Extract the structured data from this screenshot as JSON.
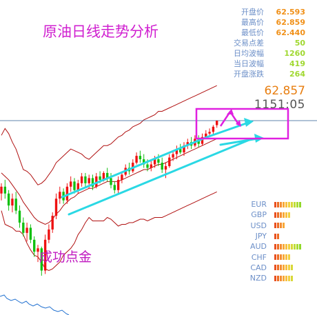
{
  "header": {
    "title": "原油日线走势分析"
  },
  "watermark": "成功点金",
  "stats": [
    {
      "label": "开盘价",
      "value": "62.593",
      "color": "#f09018"
    },
    {
      "label": "最高价",
      "value": "62.859",
      "color": "#f09018"
    },
    {
      "label": "最低价",
      "value": "62.440",
      "color": "#f09018"
    },
    {
      "label": "交易点差",
      "value": "50",
      "color": "#a0d830"
    },
    {
      "label": "日均波幅",
      "value": "1260",
      "color": "#a0d830"
    },
    {
      "label": "当日波幅",
      "value": "419",
      "color": "#a0d830"
    },
    {
      "label": "开盘涨跌",
      "value": "264",
      "color": "#a0d830"
    }
  ],
  "price": "62.857",
  "timer": "1151:05",
  "currencies": [
    {
      "name": "EUR",
      "level": 10,
      "color": "#a0d830"
    },
    {
      "name": "GBP",
      "level": 6,
      "color": "#f8c040"
    },
    {
      "name": "USD",
      "level": 4,
      "color": "#f8c040"
    },
    {
      "name": "JPY",
      "level": 2,
      "color": "#f8c040"
    },
    {
      "name": "AUD",
      "level": 10,
      "color": "#a0d830"
    },
    {
      "name": "CHF",
      "level": 6,
      "color": "#f8c040"
    },
    {
      "name": "CAD",
      "level": 7,
      "color": "#f8c040"
    },
    {
      "name": "NZD",
      "level": 7,
      "color": "#f8c040"
    }
  ],
  "colors": {
    "up_candle": "#ee1111",
    "down_candle": "#11c011",
    "bollinger": "#b01010",
    "channel": "#2ad8e4",
    "annotation": "#e020e0",
    "current_price_line": "#2a5a90",
    "sub_indicator": "#2070d0"
  },
  "chart_data": {
    "type": "candlestick",
    "symbol": "crude oil",
    "timeframe": "daily",
    "candles": [
      [
        58.6,
        59.2,
        58.2,
        59.0
      ],
      [
        59.0,
        59.4,
        58.3,
        58.6
      ],
      [
        58.6,
        58.8,
        57.6,
        57.9
      ],
      [
        57.9,
        58.6,
        57.5,
        58.3
      ],
      [
        58.3,
        58.7,
        57.4,
        57.6
      ],
      [
        57.6,
        57.9,
        56.6,
        56.9
      ],
      [
        56.9,
        57.2,
        56.1,
        56.3
      ],
      [
        56.3,
        56.9,
        55.8,
        56.6
      ],
      [
        56.6,
        56.8,
        55.7,
        55.9
      ],
      [
        55.9,
        56.1,
        54.9,
        55.2
      ],
      [
        55.2,
        55.6,
        54.6,
        55.4
      ],
      [
        55.4,
        55.5,
        53.8,
        54.1
      ],
      [
        54.1,
        56.2,
        53.9,
        55.9
      ],
      [
        55.9,
        56.8,
        55.7,
        56.5
      ],
      [
        56.5,
        57.5,
        56.3,
        57.3
      ],
      [
        57.3,
        58.6,
        57.1,
        58.3
      ],
      [
        58.3,
        59.0,
        58.0,
        58.7
      ],
      [
        58.7,
        58.9,
        58.0,
        58.2
      ],
      [
        58.2,
        59.2,
        58.0,
        59.0
      ],
      [
        59.0,
        59.6,
        58.7,
        59.3
      ],
      [
        59.3,
        59.5,
        58.6,
        58.8
      ],
      [
        58.8,
        59.4,
        58.6,
        59.2
      ],
      [
        59.2,
        59.8,
        59.0,
        59.6
      ],
      [
        59.6,
        59.8,
        59.0,
        59.2
      ],
      [
        59.2,
        59.7,
        58.9,
        59.5
      ],
      [
        59.5,
        59.7,
        58.8,
        59.0
      ],
      [
        59.0,
        59.8,
        58.9,
        59.6
      ],
      [
        59.6,
        59.9,
        59.2,
        59.4
      ],
      [
        59.4,
        59.9,
        59.3,
        59.8
      ],
      [
        59.8,
        60.1,
        59.3,
        59.5
      ],
      [
        59.5,
        59.8,
        58.9,
        59.1
      ],
      [
        59.1,
        59.3,
        58.6,
        58.8
      ],
      [
        58.8,
        59.6,
        58.6,
        59.4
      ],
      [
        59.4,
        59.9,
        59.2,
        59.7
      ],
      [
        59.7,
        60.3,
        59.6,
        60.1
      ],
      [
        60.1,
        60.4,
        59.7,
        59.9
      ],
      [
        59.9,
        60.6,
        59.8,
        60.4
      ],
      [
        60.4,
        61.0,
        60.3,
        60.8
      ],
      [
        60.8,
        61.1,
        60.4,
        60.6
      ],
      [
        60.6,
        60.9,
        60.1,
        60.3
      ],
      [
        60.3,
        60.6,
        59.9,
        60.1
      ],
      [
        60.1,
        60.5,
        59.9,
        60.3
      ],
      [
        60.3,
        60.8,
        60.1,
        60.6
      ],
      [
        60.6,
        60.9,
        60.2,
        60.4
      ],
      [
        60.4,
        60.7,
        59.8,
        60.0
      ],
      [
        60.0,
        60.4,
        59.5,
        60.2
      ],
      [
        60.2,
        60.9,
        60.1,
        60.7
      ],
      [
        60.7,
        61.1,
        60.5,
        60.9
      ],
      [
        60.9,
        61.4,
        60.6,
        61.2
      ],
      [
        61.2,
        61.5,
        60.9,
        61.0
      ],
      [
        61.0,
        61.6,
        60.8,
        61.4
      ],
      [
        61.4,
        61.8,
        61.2,
        61.6
      ],
      [
        61.6,
        61.9,
        61.2,
        61.4
      ],
      [
        61.4,
        62.0,
        61.3,
        61.8
      ],
      [
        61.8,
        62.0,
        61.3,
        61.5
      ],
      [
        61.5,
        62.1,
        61.4,
        61.9
      ],
      [
        61.9,
        62.3,
        61.8,
        62.1
      ],
      [
        62.1,
        62.4,
        61.9,
        62.2
      ],
      [
        62.2,
        62.6,
        62.0,
        62.5
      ],
      [
        62.593,
        62.859,
        62.44,
        62.857
      ]
    ],
    "bollinger_upper": [
      62.0,
      62.4,
      62.1,
      61.6,
      61.2,
      60.6,
      60.0,
      59.9,
      59.7,
      59.4,
      59.1,
      59.2,
      59.4,
      59.7,
      60.0,
      60.4,
      60.6,
      60.8,
      61.0,
      61.2,
      61.1,
      61.0,
      60.9,
      60.7,
      60.6,
      60.8,
      61.0,
      61.2,
      61.4,
      61.4,
      61.5,
      61.7,
      61.9,
      62.0,
      62.2,
      62.3,
      62.5,
      62.6,
      62.7,
      62.9,
      63.0,
      63.1,
      63.2,
      63.4,
      63.4,
      63.5,
      63.6,
      63.7,
      63.8,
      63.9,
      64.0,
      64.1,
      64.2,
      64.3,
      64.4,
      64.5,
      64.6,
      64.7,
      64.8,
      64.9
    ],
    "bollinger_mid": [
      59.8,
      59.6,
      59.4,
      59.1,
      58.8,
      58.5,
      58.1,
      57.8,
      57.5,
      57.2,
      57.0,
      56.9,
      56.8,
      56.9,
      57.1,
      57.4,
      57.6,
      57.9,
      58.1,
      58.3,
      58.4,
      58.6,
      58.7,
      58.8,
      58.9,
      58.9,
      59.0,
      59.1,
      59.2,
      59.3,
      59.3,
      59.3,
      59.3,
      59.4,
      59.5,
      59.6,
      59.7,
      59.8,
      59.9,
      60.0,
      60.0,
      60.1,
      60.2,
      60.3,
      60.3,
      60.4,
      60.5,
      60.6,
      60.7,
      60.8,
      60.9,
      61.0,
      61.1,
      61.2,
      61.3,
      61.4,
      61.5,
      61.6,
      61.7,
      61.8
    ],
    "bollinger_lower": [
      57.6,
      56.8,
      56.7,
      56.6,
      56.4,
      56.4,
      56.2,
      55.7,
      55.3,
      55.0,
      54.9,
      54.6,
      54.2,
      54.1,
      54.2,
      54.4,
      54.6,
      55.0,
      55.2,
      55.4,
      55.7,
      56.2,
      56.5,
      56.9,
      57.2,
      57.0,
      57.0,
      57.0,
      57.0,
      57.2,
      57.1,
      56.9,
      56.7,
      56.8,
      56.8,
      56.9,
      56.9,
      57.0,
      57.1,
      57.1,
      57.0,
      57.1,
      57.2,
      57.2,
      57.2,
      57.3,
      57.4,
      57.5,
      57.6,
      57.7,
      57.8,
      57.9,
      58.0,
      58.1,
      58.2,
      58.3,
      58.4,
      58.5,
      58.6,
      58.7
    ],
    "current_price": 62.857
  }
}
